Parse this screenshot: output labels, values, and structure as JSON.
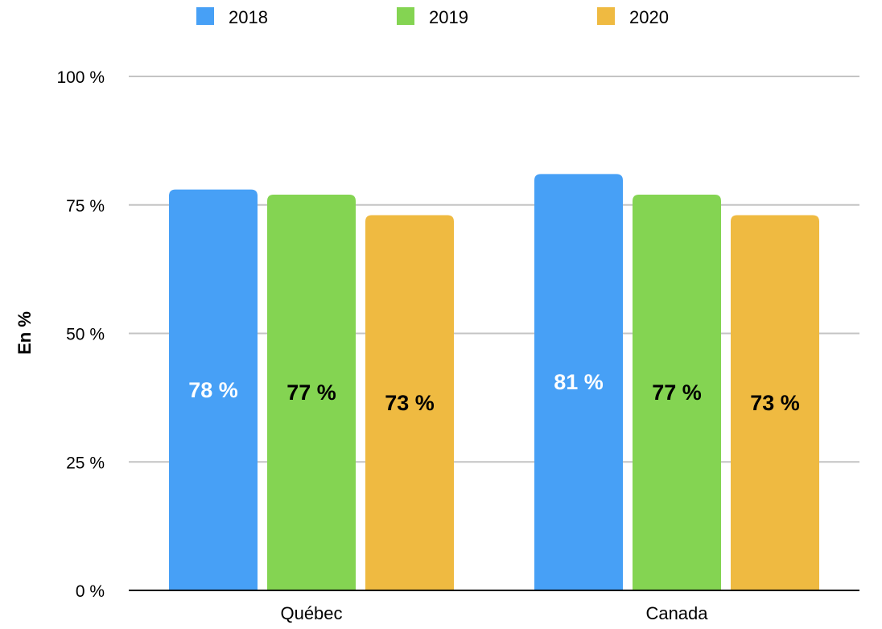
{
  "chart_data": {
    "type": "bar",
    "categories": [
      "Québec",
      "Canada"
    ],
    "series": [
      {
        "name": "2018",
        "values": [
          78,
          81
        ],
        "color": "#47A0F6",
        "label_color": "#ffffff",
        "labels": [
          "78 %",
          "81 %"
        ]
      },
      {
        "name": "2019",
        "values": [
          77,
          77
        ],
        "color": "#84D452",
        "label_color": "#000000",
        "labels": [
          "77 %",
          "77 %"
        ]
      },
      {
        "name": "2020",
        "values": [
          73,
          73
        ],
        "color": "#EFBA41",
        "label_color": "#000000",
        "labels": [
          "73 %",
          "73 %"
        ]
      }
    ],
    "ylabel": "En %",
    "ylim": [
      0,
      100
    ],
    "yticks": [
      0,
      25,
      50,
      75,
      100
    ],
    "ytick_labels": [
      "0 %",
      "25 %",
      "50 %",
      "75 %",
      "100 %"
    ],
    "grid": true,
    "legend_position": "top"
  }
}
